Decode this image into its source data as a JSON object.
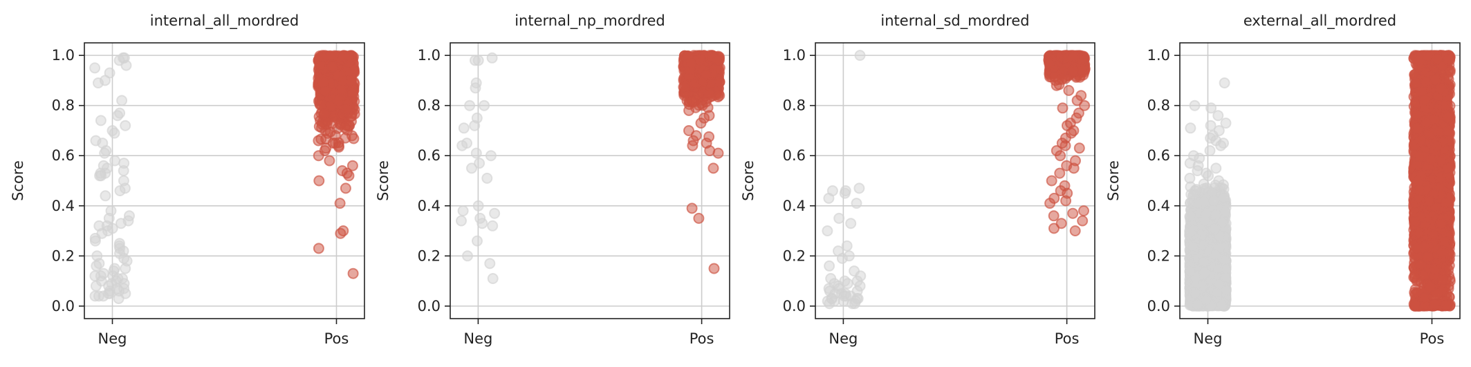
{
  "chart_data": [
    {
      "type": "scatter",
      "title": "internal_all_mordred",
      "ylabel": "Score",
      "categories": [
        "Neg",
        "Pos"
      ],
      "ylim": [
        -0.05,
        1.05
      ],
      "yticks": [
        "0.0",
        "0.2",
        "0.4",
        "0.6",
        "0.8",
        "1.0"
      ],
      "grid": true,
      "series": [
        {
          "category": "Neg",
          "color": "#d3d3d3",
          "count": 80,
          "values": [
            0.99,
            0.99,
            0.98,
            0.96,
            0.95,
            0.93,
            0.9,
            0.89,
            0.82,
            0.77,
            0.76,
            0.74,
            0.72,
            0.7,
            0.69,
            0.66,
            0.65,
            0.62,
            0.58,
            0.57,
            0.56,
            0.55,
            0.54,
            0.53,
            0.53,
            0.52,
            0.52,
            0.5,
            0.47,
            0.46,
            0.38,
            0.36,
            0.35,
            0.34,
            0.33,
            0.32,
            0.32,
            0.31,
            0.3,
            0.29,
            0.27,
            0.26,
            0.24,
            0.23,
            0.22,
            0.21,
            0.2,
            0.19,
            0.18,
            0.17,
            0.16,
            0.15,
            0.15,
            0.14,
            0.13,
            0.12,
            0.12,
            0.11,
            0.11,
            0.1,
            0.1,
            0.09,
            0.09,
            0.08,
            0.08,
            0.07,
            0.07,
            0.06,
            0.06,
            0.05,
            0.05,
            0.05,
            0.04,
            0.04,
            0.04,
            0.03,
            0.12,
            0.25,
            0.44,
            0.61
          ]
        },
        {
          "category": "Pos",
          "color": "#cd5240",
          "count": 600,
          "mean": 0.9,
          "sd": 0.1,
          "tail": [
            0.75,
            0.72,
            0.7,
            0.68,
            0.66,
            0.65,
            0.64,
            0.63,
            0.62,
            0.6,
            0.58,
            0.56,
            0.54,
            0.53,
            0.52,
            0.5,
            0.47,
            0.41,
            0.3,
            0.29,
            0.23,
            0.13
          ]
        }
      ]
    },
    {
      "type": "scatter",
      "title": "internal_np_mordred",
      "ylabel": "Score",
      "categories": [
        "Neg",
        "Pos"
      ],
      "ylim": [
        -0.05,
        1.05
      ],
      "yticks": [
        "0.0",
        "0.2",
        "0.4",
        "0.6",
        "0.8",
        "1.0"
      ],
      "grid": true,
      "series": [
        {
          "category": "Neg",
          "color": "#d3d3d3",
          "count": 28,
          "values": [
            0.99,
            0.98,
            0.98,
            0.89,
            0.87,
            0.8,
            0.8,
            0.75,
            0.72,
            0.71,
            0.65,
            0.64,
            0.61,
            0.6,
            0.57,
            0.55,
            0.51,
            0.4,
            0.38,
            0.37,
            0.35,
            0.34,
            0.33,
            0.32,
            0.26,
            0.2,
            0.17,
            0.11
          ]
        },
        {
          "category": "Pos",
          "color": "#cd5240",
          "count": 500,
          "mean": 0.93,
          "sd": 0.06,
          "tail": [
            0.78,
            0.76,
            0.75,
            0.73,
            0.7,
            0.68,
            0.66,
            0.65,
            0.64,
            0.62,
            0.61,
            0.55,
            0.39,
            0.35,
            0.15
          ]
        }
      ]
    },
    {
      "type": "scatter",
      "title": "internal_sd_mordred",
      "ylabel": "Score",
      "categories": [
        "Neg",
        "Pos"
      ],
      "ylim": [
        -0.05,
        1.05
      ],
      "yticks": [
        "0.0",
        "0.2",
        "0.4",
        "0.6",
        "0.8",
        "1.0"
      ],
      "grid": true,
      "series": [
        {
          "category": "Neg",
          "color": "#d3d3d3",
          "count": 45,
          "values": [
            1.0,
            0.47,
            0.46,
            0.46,
            0.45,
            0.43,
            0.41,
            0.35,
            0.33,
            0.3,
            0.24,
            0.22,
            0.2,
            0.19,
            0.16,
            0.14,
            0.12,
            0.11,
            0.1,
            0.1,
            0.09,
            0.09,
            0.08,
            0.08,
            0.07,
            0.07,
            0.06,
            0.06,
            0.05,
            0.05,
            0.05,
            0.04,
            0.04,
            0.04,
            0.03,
            0.03,
            0.03,
            0.03,
            0.02,
            0.02,
            0.02,
            0.02,
            0.01,
            0.01,
            0.01
          ]
        },
        {
          "category": "Pos",
          "color": "#cd5240",
          "count": 400,
          "mean": 0.97,
          "sd": 0.03,
          "tail": [
            0.9,
            0.88,
            0.86,
            0.84,
            0.82,
            0.8,
            0.79,
            0.77,
            0.75,
            0.73,
            0.72,
            0.7,
            0.69,
            0.67,
            0.65,
            0.64,
            0.63,
            0.62,
            0.6,
            0.58,
            0.56,
            0.55,
            0.53,
            0.5,
            0.48,
            0.46,
            0.45,
            0.43,
            0.42,
            0.41,
            0.38,
            0.37,
            0.36,
            0.34,
            0.33,
            0.31,
            0.3
          ]
        }
      ]
    },
    {
      "type": "scatter",
      "title": "external_all_mordred",
      "ylabel": "Score",
      "categories": [
        "Neg",
        "Pos"
      ],
      "ylim": [
        -0.05,
        1.05
      ],
      "yticks": [
        "0.0",
        "0.2",
        "0.4",
        "0.6",
        "0.8",
        "1.0"
      ],
      "grid": true,
      "series": [
        {
          "category": "Neg",
          "color": "#d3d3d3",
          "count": 3000,
          "values": [
            0.89,
            0.8,
            0.79,
            0.76,
            0.73,
            0.72,
            0.71,
            0.7,
            0.68,
            0.67,
            0.66,
            0.65,
            0.64,
            0.62,
            0.6,
            0.59,
            0.57,
            0.56,
            0.55,
            0.54,
            0.53,
            0.52,
            0.51,
            0.5
          ]
        },
        {
          "category": "Pos",
          "color": "#cd5240",
          "count": 2500,
          "mean": 0.55,
          "sd": 0.3,
          "tail": [
            0.05,
            0.04,
            0.03,
            0.01
          ]
        }
      ]
    }
  ]
}
